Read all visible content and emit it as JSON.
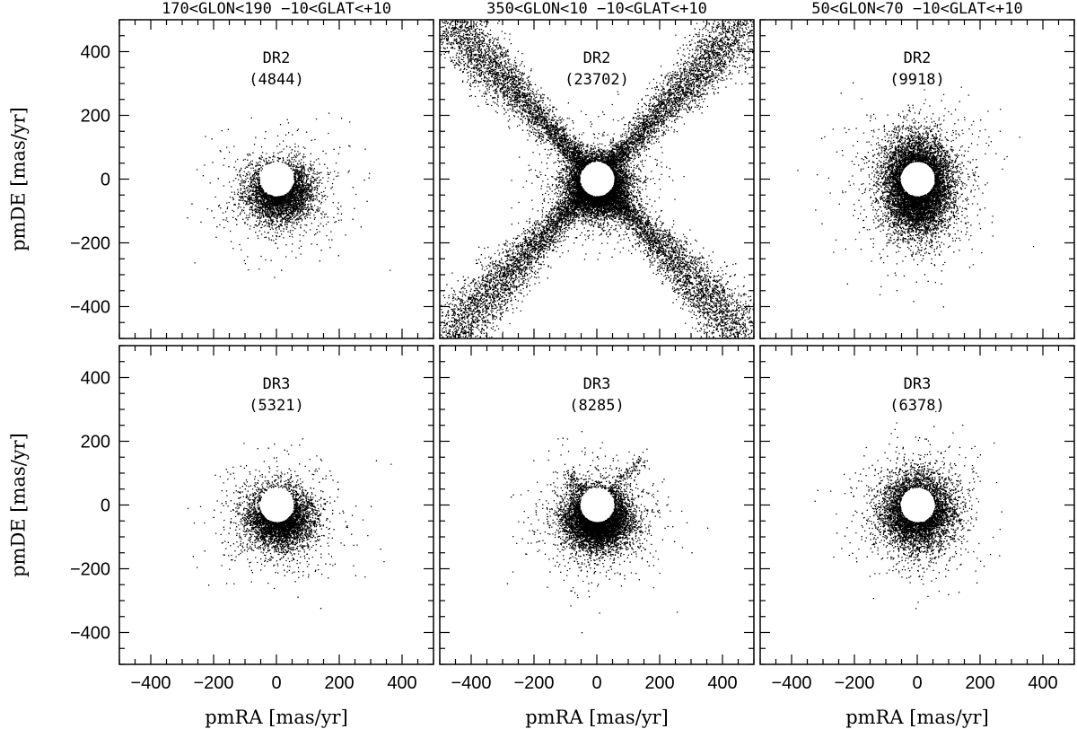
{
  "chart_data": [
    {
      "type": "scatter",
      "column_title": "170<GLON<190 −10<GLAT<+10",
      "label": "DR2",
      "count": "(4844)",
      "xlabel": "",
      "ylabel": "pmDE  [mas/yr]",
      "xlim": [
        -500,
        500
      ],
      "ylim": [
        -500,
        500
      ],
      "xticks": [
        -400,
        -200,
        0,
        200,
        400
      ],
      "yticks": [
        -400,
        -200,
        0,
        200,
        400
      ],
      "hole_radius": 55,
      "cloud": {
        "n": 4844,
        "center": [
          10,
          -40
        ],
        "sd": [
          50,
          45
        ],
        "tail_sd": [
          110,
          95
        ],
        "tail_frac": 0.12
      },
      "streams": []
    },
    {
      "type": "scatter",
      "column_title": "350<GLON<10 −10<GLAT<+10",
      "label": "DR2",
      "count": "(23702)",
      "xlabel": "",
      "ylabel": "",
      "xlim": [
        -500,
        500
      ],
      "ylim": [
        -500,
        500
      ],
      "xticks": [
        -400,
        -200,
        0,
        200,
        400
      ],
      "yticks": [
        -400,
        -200,
        0,
        200,
        400
      ],
      "hole_radius": 55,
      "cloud": {
        "n": 9000,
        "center": [
          0,
          -20
        ],
        "sd": [
          45,
          45
        ],
        "tail_sd": [
          90,
          90
        ],
        "tail_frac": 0.1
      },
      "streams": [
        {
          "slope": 1.05,
          "range": [
            -480,
            480
          ],
          "width": 14,
          "n": 7000
        },
        {
          "slope": -1.05,
          "range": [
            -480,
            480
          ],
          "width": 14,
          "n": 7000
        }
      ]
    },
    {
      "type": "scatter",
      "column_title": "50<GLON<70 −10<GLAT<+10",
      "label": "DR2",
      "count": "(9918)",
      "xlabel": "",
      "ylabel": "",
      "xlim": [
        -500,
        500
      ],
      "ylim": [
        -500,
        500
      ],
      "xticks": [
        -400,
        -200,
        0,
        200,
        400
      ],
      "yticks": [
        -400,
        -200,
        0,
        200,
        400
      ],
      "hole_radius": 55,
      "cloud": {
        "n": 9918,
        "center": [
          0,
          -20
        ],
        "sd": [
          50,
          70
        ],
        "tail_sd": [
          100,
          120
        ],
        "tail_frac": 0.12
      },
      "streams": []
    },
    {
      "type": "scatter",
      "label": "DR3",
      "count": "(5321)",
      "xlabel": "pmRA  [mas/yr]",
      "ylabel": "pmDE  [mas/yr]",
      "xlim": [
        -500,
        500
      ],
      "ylim": [
        -500,
        500
      ],
      "xticks": [
        -400,
        -200,
        0,
        200,
        400
      ],
      "yticks": [
        -400,
        -200,
        0,
        200,
        400
      ],
      "hole_radius": 55,
      "cloud": {
        "n": 5321,
        "center": [
          10,
          -40
        ],
        "sd": [
          50,
          45
        ],
        "tail_sd": [
          105,
          95
        ],
        "tail_frac": 0.12
      },
      "streams": []
    },
    {
      "type": "scatter",
      "label": "DR3",
      "count": "(8285)",
      "xlabel": "pmRA  [mas/yr]",
      "ylabel": "",
      "xlim": [
        -500,
        500
      ],
      "ylim": [
        -500,
        500
      ],
      "xticks": [
        -400,
        -200,
        0,
        200,
        400
      ],
      "yticks": [
        -400,
        -200,
        0,
        200,
        400
      ],
      "hole_radius": 55,
      "cloud": {
        "n": 8000,
        "center": [
          0,
          -45
        ],
        "sd": [
          50,
          45
        ],
        "tail_sd": [
          100,
          95
        ],
        "tail_frac": 0.12
      },
      "streams": [
        {
          "slope": 1.0,
          "range": [
            40,
            140
          ],
          "width": 10,
          "n": 150
        },
        {
          "slope": -1.0,
          "range": [
            -90,
            -40
          ],
          "width": 8,
          "n": 130
        }
      ]
    },
    {
      "type": "scatter",
      "label": "DR3",
      "count": "(6378)",
      "xlabel": "pmRA  [mas/yr]",
      "ylabel": "",
      "xlim": [
        -500,
        500
      ],
      "ylim": [
        -500,
        500
      ],
      "xticks": [
        -400,
        -200,
        0,
        200,
        400
      ],
      "yticks": [
        -400,
        -200,
        0,
        200,
        400
      ],
      "hole_radius": 55,
      "cloud": {
        "n": 6378,
        "center": [
          0,
          -20
        ],
        "sd": [
          55,
          55
        ],
        "tail_sd": [
          100,
          105
        ],
        "tail_frac": 0.12
      },
      "streams": []
    }
  ]
}
